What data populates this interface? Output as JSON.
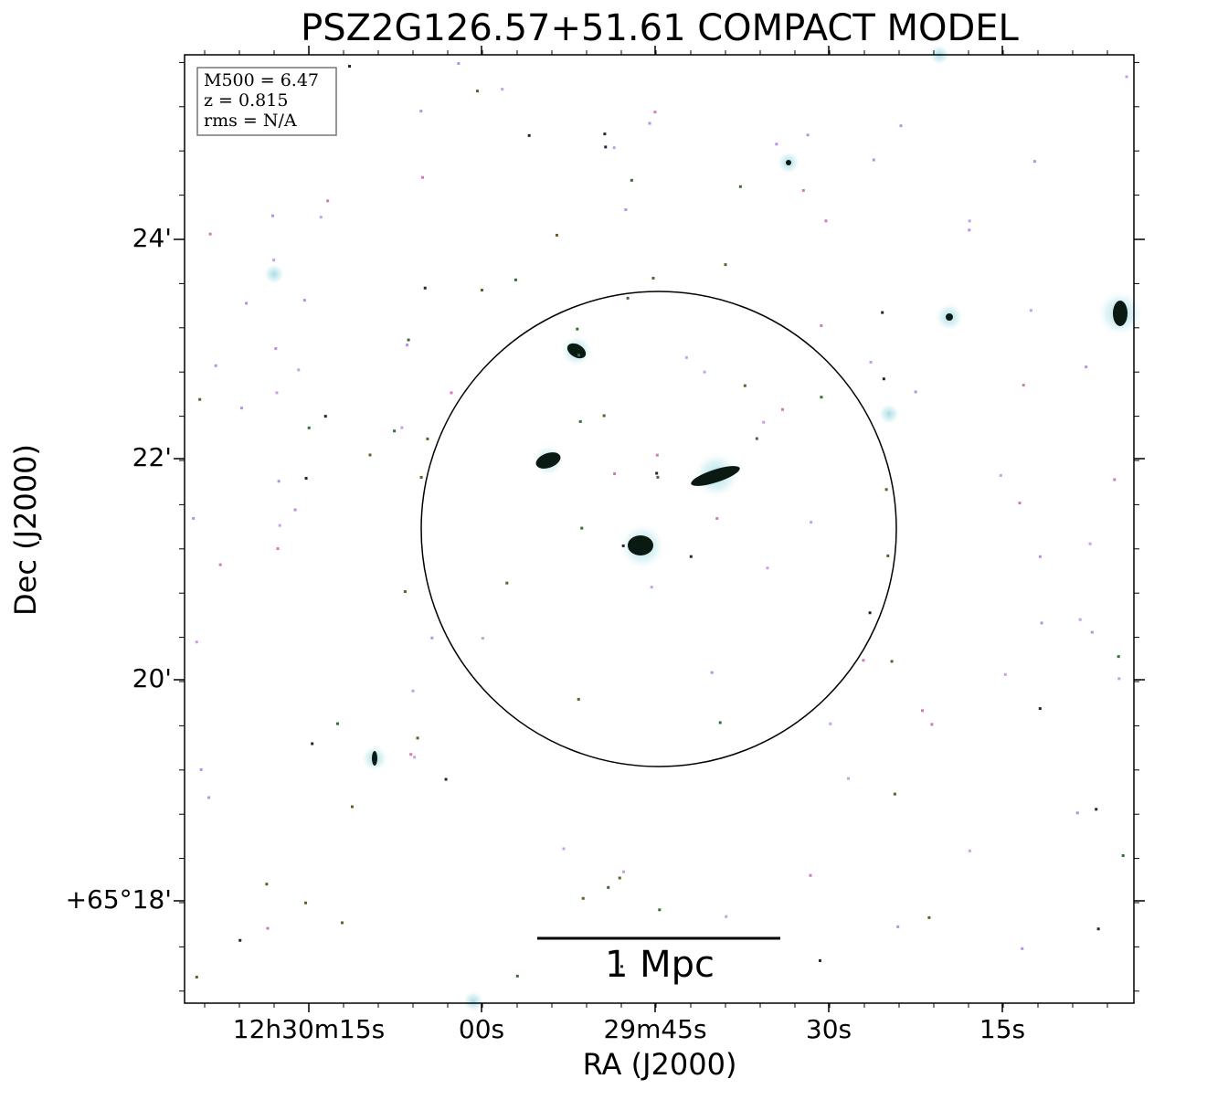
{
  "title": "PSZ2G126.57+51.61 COMPACT MODEL",
  "axes": {
    "x_label": "RA (J2000)",
    "y_label": "Dec (J2000)",
    "x_tick_labels": [
      "12h30m15s",
      "00s",
      "29m45s",
      "30s",
      "15s"
    ],
    "y_tick_labels": [
      "24'",
      "22'",
      "20'",
      "+65°18'"
    ]
  },
  "info_box": [
    "M500 = 6.47",
    "z = 0.815",
    "rms = N/A"
  ],
  "scale_bar": {
    "label": "1 Mpc"
  }
}
